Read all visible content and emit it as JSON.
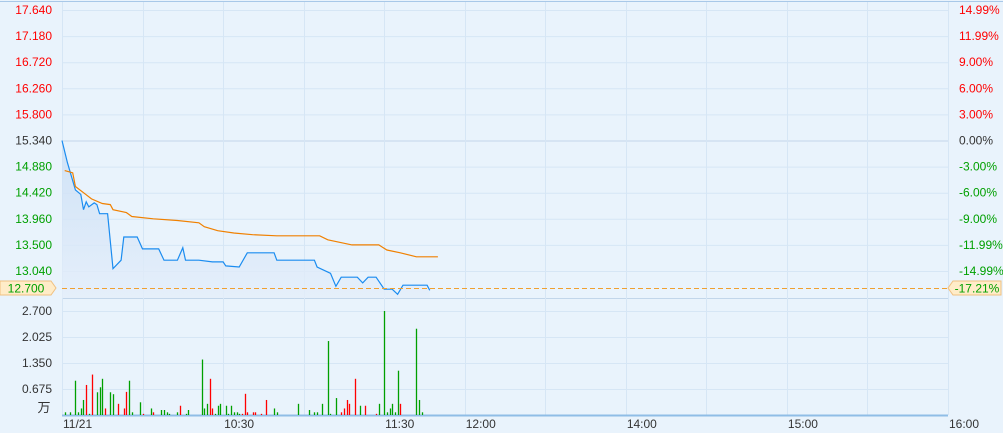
{
  "chart_data": [
    {
      "type": "line",
      "panel": "price",
      "prev_close": 15.34,
      "last_price": "12.700",
      "last_change": "-17.21%",
      "ylim": [
        12.7,
        17.64
      ],
      "left_ticks": [
        "17.640",
        "17.180",
        "16.720",
        "16.260",
        "15.800",
        "15.340",
        "14.880",
        "14.420",
        "13.960",
        "13.500",
        "13.040"
      ],
      "right_ticks": [
        "14.99%",
        "11.99%",
        "9.00%",
        "6.00%",
        "3.00%",
        "0.00%",
        "-3.00%",
        "-6.00%",
        "-9.00%",
        "-11.99%",
        "-14.99%"
      ],
      "grid": true,
      "series": [
        {
          "key": "price",
          "color": "#1a8cf0",
          "fill": true,
          "points": [
            [
              "09:30",
              15.34
            ],
            [
              "09:32",
              14.95
            ],
            [
              "09:35",
              14.47
            ],
            [
              "09:37",
              14.39
            ],
            [
              "09:38",
              14.12
            ],
            [
              "09:39",
              14.26
            ],
            [
              "09:40",
              14.17
            ],
            [
              "09:42",
              14.24
            ],
            [
              "09:43",
              14.21
            ],
            [
              "09:44",
              14.05
            ],
            [
              "09:47",
              14.05
            ],
            [
              "09:49",
              13.08
            ],
            [
              "09:52",
              13.23
            ],
            [
              "09:53",
              13.64
            ],
            [
              "09:58",
              13.64
            ],
            [
              "10:00",
              13.43
            ],
            [
              "10:06",
              13.43
            ],
            [
              "10:08",
              13.23
            ],
            [
              "10:13",
              13.23
            ],
            [
              "10:15",
              13.45
            ],
            [
              "10:16",
              13.23
            ],
            [
              "10:21",
              13.23
            ],
            [
              "10:26",
              13.2
            ],
            [
              "10:30",
              13.2
            ],
            [
              "10:31",
              13.13
            ],
            [
              "10:36",
              13.11
            ],
            [
              "10:39",
              13.36
            ],
            [
              "10:49",
              13.36
            ],
            [
              "10:50",
              13.23
            ],
            [
              "11:04",
              13.23
            ],
            [
              "11:05",
              13.11
            ],
            [
              "11:10",
              13.0
            ],
            [
              "11:12",
              12.77
            ],
            [
              "11:14",
              12.93
            ],
            [
              "11:20",
              12.93
            ],
            [
              "11:22",
              12.83
            ],
            [
              "11:24",
              12.93
            ],
            [
              "11:27",
              12.93
            ],
            [
              "11:30",
              12.72
            ],
            [
              "11:33",
              12.72
            ],
            [
              "11:35",
              12.63
            ],
            [
              "11:37",
              12.79
            ],
            [
              "11:46",
              12.79
            ],
            [
              "11:47",
              12.7
            ]
          ]
        },
        {
          "key": "average",
          "color": "#f08000",
          "fill": false,
          "points": [
            [
              "09:31",
              14.81
            ],
            [
              "09:34",
              14.77
            ],
            [
              "09:35",
              14.53
            ],
            [
              "09:38",
              14.42
            ],
            [
              "09:41",
              14.31
            ],
            [
              "09:45",
              14.23
            ],
            [
              "09:48",
              14.21
            ],
            [
              "09:49",
              14.12
            ],
            [
              "09:54",
              14.07
            ],
            [
              "09:56",
              14.0
            ],
            [
              "10:04",
              13.96
            ],
            [
              "10:13",
              13.93
            ],
            [
              "10:21",
              13.89
            ],
            [
              "10:23",
              13.82
            ],
            [
              "10:28",
              13.75
            ],
            [
              "10:34",
              13.71
            ],
            [
              "10:41",
              13.68
            ],
            [
              "10:50",
              13.66
            ],
            [
              "11:06",
              13.66
            ],
            [
              "11:09",
              13.59
            ],
            [
              "11:18",
              13.5
            ],
            [
              "11:28",
              13.5
            ],
            [
              "11:31",
              13.41
            ],
            [
              "11:36",
              13.36
            ],
            [
              "11:42",
              13.29
            ],
            [
              "11:50",
              13.29
            ]
          ]
        }
      ]
    },
    {
      "type": "bar",
      "panel": "volume",
      "unit": "万",
      "ylim": [
        0,
        2.7
      ],
      "left_ticks": [
        "2.700",
        "2.025",
        "1.350",
        "0.675"
      ],
      "up_color": "#ff0000",
      "down_color": "#00a000",
      "bars": [
        [
          "09:31",
          0.07,
          "down"
        ],
        [
          "09:33",
          0.07,
          "down"
        ],
        [
          "09:35",
          0.89,
          "down"
        ],
        [
          "09:36",
          0.07,
          "down"
        ],
        [
          "09:37",
          0.17,
          "down"
        ],
        [
          "09:38",
          0.39,
          "down"
        ],
        [
          "09:39",
          0.78,
          "up"
        ],
        [
          "09:40",
          0.03,
          "down"
        ],
        [
          "09:41",
          1.05,
          "up"
        ],
        [
          "09:43",
          0.59,
          "down"
        ],
        [
          "09:44",
          0.72,
          "down"
        ],
        [
          "09:45",
          0.94,
          "down"
        ],
        [
          "09:46",
          0.17,
          "up"
        ],
        [
          "09:48",
          0.59,
          "down"
        ],
        [
          "09:49",
          0.54,
          "down"
        ],
        [
          "09:51",
          0.29,
          "up"
        ],
        [
          "09:53",
          0.17,
          "up"
        ],
        [
          "09:54",
          0.6,
          "up"
        ],
        [
          "09:55",
          0.89,
          "down"
        ],
        [
          "09:56",
          0.07,
          "down"
        ],
        [
          "09:59",
          0.33,
          "down"
        ],
        [
          "10:00",
          0.03,
          "up"
        ],
        [
          "10:03",
          0.17,
          "down"
        ],
        [
          "10:04",
          0.07,
          "up"
        ],
        [
          "10:07",
          0.13,
          "down"
        ],
        [
          "10:08",
          0.13,
          "down"
        ],
        [
          "10:09",
          0.07,
          "down"
        ],
        [
          "10:10",
          0.03,
          "down"
        ],
        [
          "10:13",
          0.07,
          "down"
        ],
        [
          "10:14",
          0.24,
          "up"
        ],
        [
          "10:16",
          0.03,
          "down"
        ],
        [
          "10:17",
          0.13,
          "down"
        ],
        [
          "10:22",
          1.44,
          "down"
        ],
        [
          "10:23",
          0.17,
          "down"
        ],
        [
          "10:24",
          0.29,
          "down"
        ],
        [
          "10:25",
          0.94,
          "up"
        ],
        [
          "10:26",
          0.17,
          "up"
        ],
        [
          "10:27",
          0.03,
          "down"
        ],
        [
          "10:28",
          0.24,
          "down"
        ],
        [
          "10:29",
          0.29,
          "down"
        ],
        [
          "10:31",
          0.24,
          "down"
        ],
        [
          "10:32",
          0.03,
          "down"
        ],
        [
          "10:33",
          0.24,
          "down"
        ],
        [
          "10:34",
          0.07,
          "down"
        ],
        [
          "10:35",
          0.07,
          "down"
        ],
        [
          "10:36",
          0.03,
          "down"
        ],
        [
          "10:37",
          0.03,
          "up"
        ],
        [
          "10:38",
          0.55,
          "up"
        ],
        [
          "10:39",
          0.07,
          "up"
        ],
        [
          "10:41",
          0.07,
          "up"
        ],
        [
          "10:42",
          0.07,
          "up"
        ],
        [
          "10:44",
          0.03,
          "up"
        ],
        [
          "10:46",
          0.39,
          "up"
        ],
        [
          "10:49",
          0.17,
          "down"
        ],
        [
          "10:50",
          0.07,
          "down"
        ],
        [
          "10:58",
          0.29,
          "down"
        ],
        [
          "11:02",
          0.13,
          "down"
        ],
        [
          "11:04",
          0.07,
          "down"
        ],
        [
          "11:05",
          0.07,
          "down"
        ],
        [
          "11:07",
          0.29,
          "down"
        ],
        [
          "11:09",
          1.92,
          "down"
        ],
        [
          "11:10",
          0.03,
          "down"
        ],
        [
          "11:12",
          0.44,
          "down"
        ],
        [
          "11:14",
          0.07,
          "up"
        ],
        [
          "11:15",
          0.17,
          "up"
        ],
        [
          "11:16",
          0.39,
          "up"
        ],
        [
          "11:17",
          0.29,
          "up"
        ],
        [
          "11:19",
          0.94,
          "up"
        ],
        [
          "11:21",
          0.24,
          "down"
        ],
        [
          "11:23",
          0.24,
          "up"
        ],
        [
          "11:27",
          0.03,
          "up"
        ],
        [
          "11:28",
          0.29,
          "down"
        ],
        [
          "11:30",
          2.7,
          "down"
        ],
        [
          "11:31",
          0.07,
          "down"
        ],
        [
          "11:32",
          0.17,
          "down"
        ],
        [
          "11:33",
          0.29,
          "down"
        ],
        [
          "11:34",
          0.07,
          "down"
        ],
        [
          "11:35",
          1.15,
          "down"
        ],
        [
          "11:36",
          0.29,
          "up"
        ],
        [
          "11:42",
          2.24,
          "down"
        ],
        [
          "11:43",
          0.39,
          "down"
        ],
        [
          "11:44",
          0.07,
          "down"
        ]
      ]
    }
  ],
  "x_axis": {
    "session": {
      "open": "09:30",
      "lunch_start": "12:00",
      "lunch_end": "13:00",
      "close": "16:00"
    },
    "labels": [
      [
        "11/21",
        "09:30"
      ],
      [
        "10:30",
        "10:30"
      ],
      [
        "11:30",
        "11:30"
      ],
      [
        "12:00",
        "12:00"
      ],
      [
        "14:00",
        "14:00"
      ],
      [
        "15:00",
        "15:00"
      ],
      [
        "16:00",
        "16:00"
      ]
    ]
  },
  "colors": {
    "background": "#e9f3fc",
    "grid": "#d6e6f5",
    "up": "#ff0000",
    "down": "#00a000",
    "neutral": "#333333",
    "current_line": "#f0a030"
  }
}
